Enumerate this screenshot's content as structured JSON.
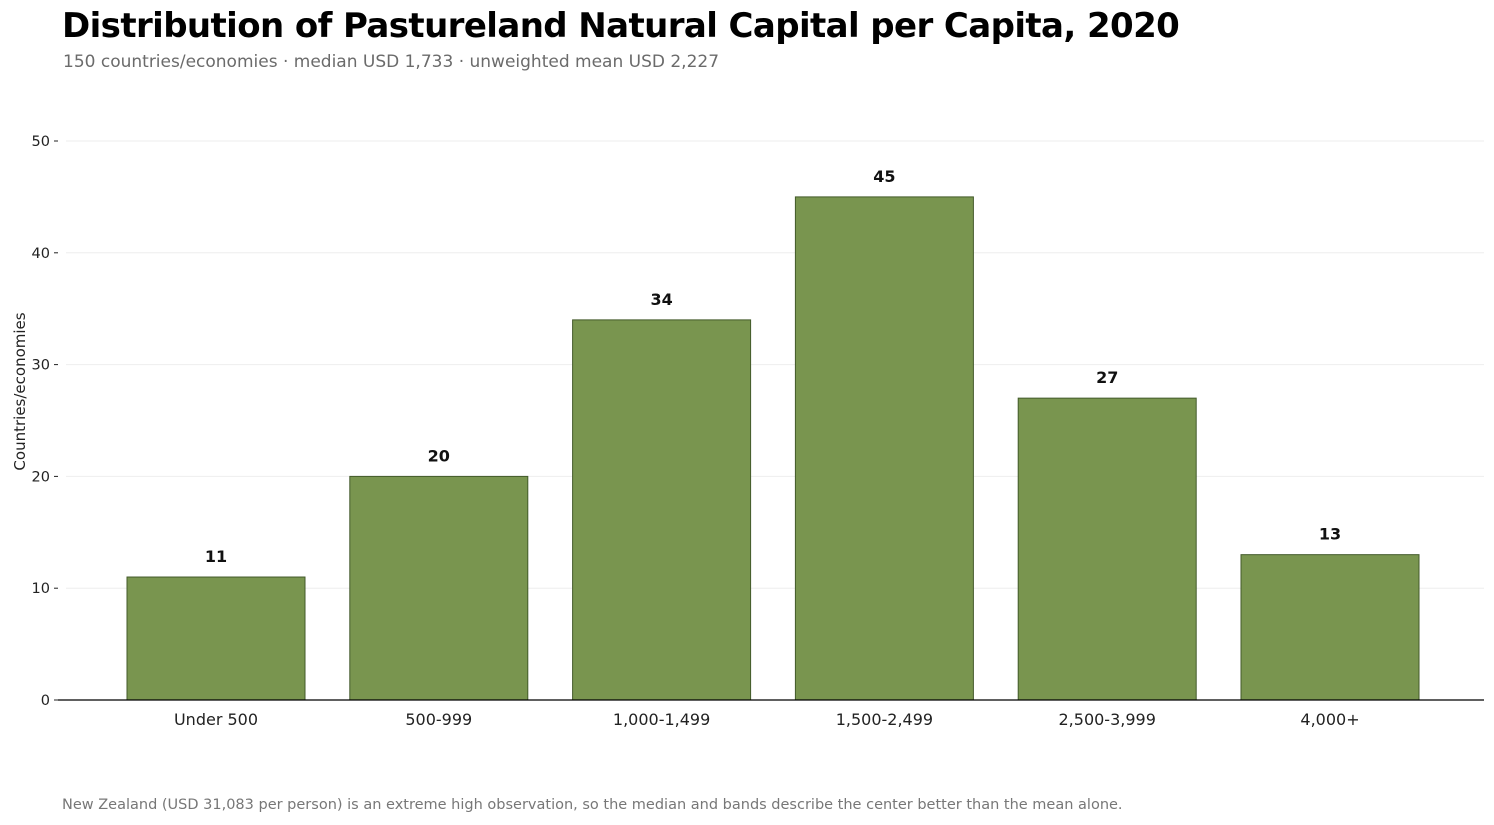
{
  "header": {
    "title": "Distribution of Pastureland Natural Capital per Capita, 2020",
    "subtitle": "150 countries/economies · median USD 1,733 · unweighted mean USD 2,227"
  },
  "footnote": "New Zealand (USD 31,083 per person) is an extreme high observation, so the median and bands describe the center better than the mean alone.",
  "colors": {
    "bar_fill": "#79954f",
    "bar_stroke": "#435a2a",
    "grid": "#eeeeee",
    "axis": "#000000"
  },
  "chart_data": {
    "type": "bar",
    "title": "Distribution of Pastureland Natural Capital per Capita, 2020",
    "subtitle": "150 countries/economies · median USD 1,733 · unweighted mean USD 2,227",
    "xlabel": "",
    "ylabel": "Countries/economies",
    "categories": [
      "Under 500",
      "500-999",
      "1,000-1,499",
      "1,500-2,499",
      "2,500-3,999",
      "4,000+"
    ],
    "values": [
      11,
      20,
      34,
      45,
      27,
      13
    ],
    "data_labels": [
      "11",
      "20",
      "34",
      "45",
      "27",
      "13"
    ],
    "ylim": [
      0,
      50
    ],
    "yticks": [
      0,
      10,
      20,
      30,
      40,
      50
    ],
    "grid": "horizontal",
    "legend": "none"
  }
}
